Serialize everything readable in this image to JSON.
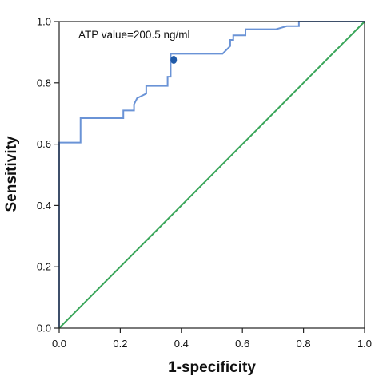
{
  "chart_data": {
    "type": "line",
    "title": "",
    "xlabel": "1-specificity",
    "ylabel": "Sensitivity",
    "xlim": [
      0.0,
      1.0
    ],
    "ylim": [
      0.0,
      1.0
    ],
    "x_ticks": [
      "0.0",
      "0.2",
      "0.4",
      "0.6",
      "0.8",
      "1.0"
    ],
    "y_ticks": [
      "0.0",
      "0.2",
      "0.4",
      "0.6",
      "0.8",
      "1.0"
    ],
    "grid": false,
    "legend": "none",
    "annotation": {
      "text": "ATP value=200.5 ng/ml",
      "point": {
        "x": 0.375,
        "y": 0.875
      },
      "color": "#1f5aa8"
    },
    "series": [
      {
        "kind": "roc",
        "color": "#6a93d6",
        "x": [
          0.0,
          0.0,
          0.07,
          0.07,
          0.21,
          0.21,
          0.245,
          0.245,
          0.255,
          0.285,
          0.285,
          0.355,
          0.355,
          0.365,
          0.365,
          0.535,
          0.56,
          0.56,
          0.57,
          0.57,
          0.61,
          0.61,
          0.71,
          0.745,
          0.785,
          0.785,
          1.0
        ],
        "y": [
          0.0,
          0.605,
          0.605,
          0.685,
          0.685,
          0.71,
          0.71,
          0.73,
          0.75,
          0.765,
          0.79,
          0.79,
          0.82,
          0.82,
          0.895,
          0.895,
          0.92,
          0.94,
          0.94,
          0.955,
          0.955,
          0.975,
          0.975,
          0.985,
          0.985,
          1.0,
          1.0
        ]
      },
      {
        "kind": "reference",
        "color": "#3aa65a",
        "x": [
          0.0,
          1.0
        ],
        "y": [
          0.0,
          1.0
        ]
      }
    ],
    "colors": {
      "axis": "#222222",
      "text": "#111111"
    }
  }
}
